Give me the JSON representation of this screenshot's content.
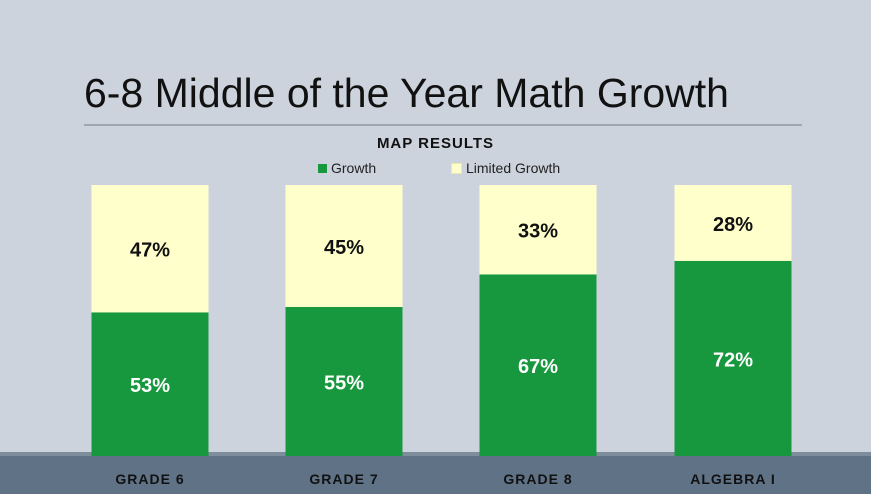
{
  "slide": {
    "title": "6-8 Middle of the Year Math Growth"
  },
  "chart_data": {
    "type": "bar",
    "stacked": true,
    "title": "MAP RESULTS",
    "categories": [
      "GRADE 6",
      "GRADE 7",
      "GRADE 8",
      "ALGEBRA I"
    ],
    "series": [
      {
        "name": "Growth",
        "values": [
          53,
          55,
          67,
          72
        ],
        "labels": [
          "53%",
          "55%",
          "67%",
          "72%"
        ],
        "color": "#17973e",
        "label_color": "#ffffff"
      },
      {
        "name": "Limited Growth",
        "values": [
          47,
          45,
          33,
          28
        ],
        "labels": [
          "47%",
          "45%",
          "33%",
          "28%"
        ],
        "color": "#ffffcc",
        "label_color": "#111111"
      }
    ],
    "ylim": [
      0,
      100
    ],
    "xlabel": "",
    "ylabel": "",
    "legend_position": "top-center",
    "grid": false
  },
  "colors": {
    "background": "#ccd3dd",
    "axis_band": "#5f7286"
  }
}
